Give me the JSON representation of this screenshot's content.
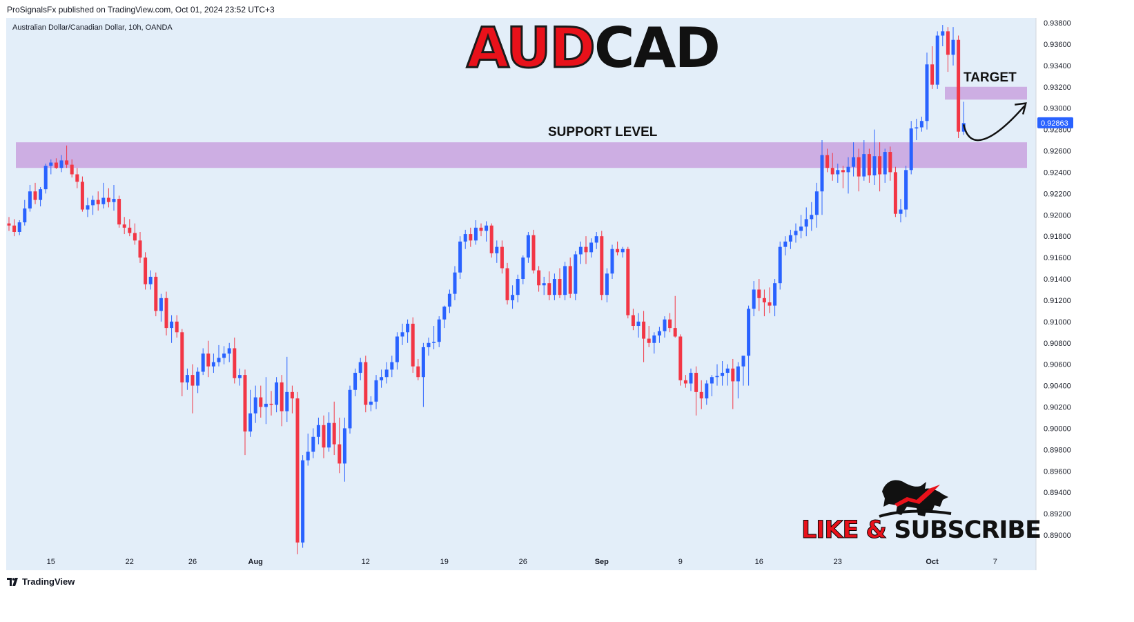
{
  "header": {
    "attribution": "ProSignalsFx published on TradingView.com, Oct 01, 2024 23:52 UTC+3"
  },
  "chart_data": {
    "type": "candlestick",
    "symbol": "Australian Dollar/Canadian Dollar, 10h, OANDA",
    "title_red": "AUD",
    "title_dark": "CAD",
    "ylim": [
      0.8875,
      0.9387
    ],
    "y_ticks": [
      "0.93800",
      "0.93600",
      "0.93400",
      "0.93200",
      "0.93000",
      "0.92800",
      "0.92600",
      "0.92400",
      "0.92200",
      "0.92000",
      "0.91800",
      "0.91600",
      "0.91400",
      "0.91200",
      "0.91000",
      "0.90800",
      "0.90600",
      "0.90400",
      "0.90200",
      "0.90000",
      "0.89800",
      "0.89600",
      "0.89400",
      "0.89200",
      "0.89000"
    ],
    "last_price": "0.92863",
    "x_labels": [
      {
        "label": "15",
        "bold": false,
        "index": 8
      },
      {
        "label": "22",
        "bold": false,
        "index": 23
      },
      {
        "label": "26",
        "bold": false,
        "index": 35
      },
      {
        "label": "Aug",
        "bold": true,
        "index": 47
      },
      {
        "label": "12",
        "bold": false,
        "index": 68
      },
      {
        "label": "19",
        "bold": false,
        "index": 83
      },
      {
        "label": "26",
        "bold": false,
        "index": 98
      },
      {
        "label": "Sep",
        "bold": true,
        "index": 113
      },
      {
        "label": "9",
        "bold": false,
        "index": 128
      },
      {
        "label": "16",
        "bold": false,
        "index": 143
      },
      {
        "label": "23",
        "bold": false,
        "index": 158
      },
      {
        "label": "Oct",
        "bold": true,
        "index": 176
      },
      {
        "label": "7",
        "bold": false,
        "index": 188
      }
    ],
    "support_zone": {
      "low": 0.9244,
      "high": 0.9268,
      "label": "SUPPORT LEVEL"
    },
    "target_zone": {
      "low": 0.9308,
      "high": 0.932,
      "label": "TARGET"
    },
    "candles": [
      [
        0.9192,
        0.9198,
        0.9185,
        0.919
      ],
      [
        0.919,
        0.9196,
        0.918,
        0.9184
      ],
      [
        0.9184,
        0.9195,
        0.9181,
        0.9193
      ],
      [
        0.9193,
        0.9214,
        0.919,
        0.9206
      ],
      [
        0.9206,
        0.9228,
        0.9203,
        0.9222
      ],
      [
        0.9222,
        0.923,
        0.921,
        0.9214
      ],
      [
        0.9214,
        0.9226,
        0.9208,
        0.9224
      ],
      [
        0.9224,
        0.9248,
        0.922,
        0.9246
      ],
      [
        0.9246,
        0.9252,
        0.9238,
        0.9249
      ],
      [
        0.9249,
        0.9253,
        0.9243,
        0.9244
      ],
      [
        0.9244,
        0.9256,
        0.924,
        0.9251
      ],
      [
        0.9251,
        0.9265,
        0.9244,
        0.9247
      ],
      [
        0.9247,
        0.9252,
        0.9235,
        0.9238
      ],
      [
        0.9238,
        0.9244,
        0.9225,
        0.9231
      ],
      [
        0.9231,
        0.9236,
        0.9203,
        0.9205
      ],
      [
        0.9205,
        0.9216,
        0.9198,
        0.9209
      ],
      [
        0.9209,
        0.9218,
        0.92,
        0.9214
      ],
      [
        0.9214,
        0.9222,
        0.9204,
        0.921
      ],
      [
        0.921,
        0.923,
        0.9206,
        0.9216
      ],
      [
        0.9216,
        0.9225,
        0.9207,
        0.9212
      ],
      [
        0.9212,
        0.9228,
        0.9204,
        0.9215
      ],
      [
        0.9215,
        0.9218,
        0.9188,
        0.9191
      ],
      [
        0.9191,
        0.9198,
        0.9182,
        0.9188
      ],
      [
        0.9188,
        0.9196,
        0.918,
        0.9183
      ],
      [
        0.9183,
        0.9192,
        0.9172,
        0.9176
      ],
      [
        0.9176,
        0.9184,
        0.9155,
        0.916
      ],
      [
        0.916,
        0.9165,
        0.913,
        0.9135
      ],
      [
        0.9135,
        0.9148,
        0.913,
        0.9142
      ],
      [
        0.9142,
        0.9146,
        0.9105,
        0.911
      ],
      [
        0.911,
        0.9126,
        0.91,
        0.9122
      ],
      [
        0.9122,
        0.9128,
        0.9087,
        0.9094
      ],
      [
        0.9094,
        0.9106,
        0.908,
        0.91
      ],
      [
        0.91,
        0.9106,
        0.9085,
        0.909
      ],
      [
        0.909,
        0.9093,
        0.903,
        0.9043
      ],
      [
        0.9043,
        0.9056,
        0.9036,
        0.905
      ],
      [
        0.905,
        0.906,
        0.9014,
        0.904
      ],
      [
        0.904,
        0.9057,
        0.9033,
        0.9053
      ],
      [
        0.9053,
        0.9075,
        0.905,
        0.907
      ],
      [
        0.907,
        0.9082,
        0.9048,
        0.9058
      ],
      [
        0.9058,
        0.907,
        0.9052,
        0.9062
      ],
      [
        0.9062,
        0.9078,
        0.9058,
        0.9066
      ],
      [
        0.9066,
        0.9077,
        0.906,
        0.907
      ],
      [
        0.907,
        0.908,
        0.9062,
        0.9075
      ],
      [
        0.9075,
        0.9085,
        0.9042,
        0.9047
      ],
      [
        0.9047,
        0.9056,
        0.904,
        0.905
      ],
      [
        0.905,
        0.9055,
        0.8975,
        0.8997
      ],
      [
        0.8997,
        0.9036,
        0.8992,
        0.9014
      ],
      [
        0.9014,
        0.904,
        0.9005,
        0.9029
      ],
      [
        0.9029,
        0.904,
        0.901,
        0.902
      ],
      [
        0.902,
        0.9048,
        0.9004,
        0.9023
      ],
      [
        0.9023,
        0.9035,
        0.9012,
        0.9022
      ],
      [
        0.9022,
        0.9048,
        0.9015,
        0.9043
      ],
      [
        0.9043,
        0.905,
        0.9002,
        0.9016
      ],
      [
        0.9016,
        0.9067,
        0.9006,
        0.9034
      ],
      [
        0.9034,
        0.904,
        0.9014,
        0.9028
      ],
      [
        0.9028,
        0.9034,
        0.8882,
        0.8893
      ],
      [
        0.8893,
        0.8975,
        0.8888,
        0.897
      ],
      [
        0.897,
        0.8995,
        0.8965,
        0.8978
      ],
      [
        0.8978,
        0.9,
        0.8972,
        0.8992
      ],
      [
        0.8992,
        0.901,
        0.8985,
        0.9003
      ],
      [
        0.9003,
        0.9012,
        0.8972,
        0.8982
      ],
      [
        0.8982,
        0.9015,
        0.8978,
        0.9005
      ],
      [
        0.9005,
        0.9025,
        0.8975,
        0.8985
      ],
      [
        0.8985,
        0.901,
        0.8958,
        0.8967
      ],
      [
        0.8967,
        0.901,
        0.895,
        0.9
      ],
      [
        0.9,
        0.904,
        0.8995,
        0.9036
      ],
      [
        0.9036,
        0.9056,
        0.903,
        0.9052
      ],
      [
        0.9052,
        0.9066,
        0.9045,
        0.9062
      ],
      [
        0.9062,
        0.9068,
        0.9015,
        0.9022
      ],
      [
        0.9022,
        0.903,
        0.9016,
        0.9025
      ],
      [
        0.9025,
        0.905,
        0.9018,
        0.9045
      ],
      [
        0.9045,
        0.9055,
        0.9038,
        0.9048
      ],
      [
        0.9048,
        0.9062,
        0.9042,
        0.9055
      ],
      [
        0.9055,
        0.9068,
        0.9048,
        0.9062
      ],
      [
        0.9062,
        0.909,
        0.9055,
        0.9086
      ],
      [
        0.9086,
        0.9098,
        0.9078,
        0.909
      ],
      [
        0.909,
        0.9102,
        0.908,
        0.9098
      ],
      [
        0.9098,
        0.9104,
        0.9052,
        0.9058
      ],
      [
        0.9058,
        0.9065,
        0.9045,
        0.9048
      ],
      [
        0.9048,
        0.908,
        0.902,
        0.9076
      ],
      [
        0.9076,
        0.9085,
        0.9068,
        0.908
      ],
      [
        0.908,
        0.9096,
        0.9074,
        0.9081
      ],
      [
        0.9081,
        0.9105,
        0.9076,
        0.9102
      ],
      [
        0.9102,
        0.9115,
        0.9094,
        0.9114
      ],
      [
        0.9114,
        0.913,
        0.9108,
        0.9126
      ],
      [
        0.9126,
        0.9152,
        0.912,
        0.9146
      ],
      [
        0.9146,
        0.918,
        0.914,
        0.9175
      ],
      [
        0.9175,
        0.9186,
        0.9168,
        0.9182
      ],
      [
        0.9182,
        0.9188,
        0.917,
        0.9176
      ],
      [
        0.9176,
        0.9195,
        0.9172,
        0.9188
      ],
      [
        0.9188,
        0.9192,
        0.918,
        0.9185
      ],
      [
        0.9185,
        0.9194,
        0.9175,
        0.919
      ],
      [
        0.919,
        0.9192,
        0.916,
        0.9164
      ],
      [
        0.9164,
        0.9176,
        0.9155,
        0.917
      ],
      [
        0.917,
        0.9176,
        0.9145,
        0.915
      ],
      [
        0.915,
        0.9155,
        0.9116,
        0.912
      ],
      [
        0.912,
        0.9134,
        0.9112,
        0.9125
      ],
      [
        0.9125,
        0.9144,
        0.9118,
        0.914
      ],
      [
        0.914,
        0.9162,
        0.9135,
        0.916
      ],
      [
        0.916,
        0.9184,
        0.9155,
        0.9181
      ],
      [
        0.9181,
        0.9186,
        0.9145,
        0.9148
      ],
      [
        0.9148,
        0.9152,
        0.9128,
        0.9134
      ],
      [
        0.9134,
        0.9142,
        0.9125,
        0.9136
      ],
      [
        0.9136,
        0.9147,
        0.912,
        0.9125
      ],
      [
        0.9125,
        0.9145,
        0.912,
        0.914
      ],
      [
        0.914,
        0.915,
        0.9122,
        0.9125
      ],
      [
        0.9125,
        0.9156,
        0.912,
        0.9152
      ],
      [
        0.9152,
        0.916,
        0.9122,
        0.9126
      ],
      [
        0.9126,
        0.9166,
        0.912,
        0.9163
      ],
      [
        0.9163,
        0.9175,
        0.9154,
        0.917
      ],
      [
        0.917,
        0.918,
        0.9154,
        0.9165
      ],
      [
        0.9165,
        0.9178,
        0.916,
        0.9174
      ],
      [
        0.9174,
        0.9184,
        0.9168,
        0.918
      ],
      [
        0.918,
        0.9185,
        0.912,
        0.9125
      ],
      [
        0.9125,
        0.915,
        0.9118,
        0.9145
      ],
      [
        0.9145,
        0.9172,
        0.914,
        0.9168
      ],
      [
        0.9168,
        0.9175,
        0.9162,
        0.9165
      ],
      [
        0.9165,
        0.917,
        0.916,
        0.9168
      ],
      [
        0.9168,
        0.917,
        0.9103,
        0.9106
      ],
      [
        0.9106,
        0.9112,
        0.9092,
        0.9096
      ],
      [
        0.9096,
        0.9108,
        0.9085,
        0.91
      ],
      [
        0.91,
        0.911,
        0.9062,
        0.9084
      ],
      [
        0.9084,
        0.9096,
        0.9076,
        0.908
      ],
      [
        0.908,
        0.909,
        0.907,
        0.9087
      ],
      [
        0.9087,
        0.9095,
        0.908,
        0.9091
      ],
      [
        0.9091,
        0.9105,
        0.9085,
        0.9102
      ],
      [
        0.9102,
        0.9108,
        0.909,
        0.9094
      ],
      [
        0.9094,
        0.9124,
        0.9085,
        0.9086
      ],
      [
        0.9086,
        0.9088,
        0.904,
        0.9045
      ],
      [
        0.9045,
        0.905,
        0.9038,
        0.9042
      ],
      [
        0.9042,
        0.9056,
        0.9035,
        0.9052
      ],
      [
        0.9052,
        0.9058,
        0.9012,
        0.9034
      ],
      [
        0.9034,
        0.9045,
        0.9018,
        0.9028
      ],
      [
        0.9028,
        0.9045,
        0.9022,
        0.9042
      ],
      [
        0.9042,
        0.905,
        0.903,
        0.9048
      ],
      [
        0.9048,
        0.906,
        0.904,
        0.9049
      ],
      [
        0.9049,
        0.9063,
        0.904,
        0.9052
      ],
      [
        0.9052,
        0.906,
        0.904,
        0.9056
      ],
      [
        0.9056,
        0.9065,
        0.9018,
        0.9044
      ],
      [
        0.9044,
        0.9062,
        0.9028,
        0.9058
      ],
      [
        0.9058,
        0.9065,
        0.904,
        0.9068
      ],
      [
        0.9068,
        0.9115,
        0.904,
        0.9112
      ],
      [
        0.9112,
        0.9138,
        0.9105,
        0.913
      ],
      [
        0.913,
        0.914,
        0.911,
        0.9122
      ],
      [
        0.9122,
        0.913,
        0.9105,
        0.9118
      ],
      [
        0.9118,
        0.9132,
        0.9108,
        0.9115
      ],
      [
        0.9115,
        0.914,
        0.9105,
        0.9136
      ],
      [
        0.9136,
        0.9175,
        0.913,
        0.917
      ],
      [
        0.917,
        0.918,
        0.9162,
        0.9175
      ],
      [
        0.9175,
        0.9186,
        0.9168,
        0.9181
      ],
      [
        0.9181,
        0.9192,
        0.9174,
        0.9185
      ],
      [
        0.9185,
        0.92,
        0.9178,
        0.9189
      ],
      [
        0.9189,
        0.9207,
        0.918,
        0.9196
      ],
      [
        0.9196,
        0.9212,
        0.9185,
        0.92
      ],
      [
        0.92,
        0.923,
        0.9188,
        0.9222
      ],
      [
        0.9222,
        0.927,
        0.92,
        0.9256
      ],
      [
        0.9256,
        0.9262,
        0.924,
        0.9244
      ],
      [
        0.9244,
        0.9258,
        0.9232,
        0.9238
      ],
      [
        0.9238,
        0.9248,
        0.923,
        0.9242
      ],
      [
        0.9242,
        0.9246,
        0.9225,
        0.924
      ],
      [
        0.924,
        0.9254,
        0.922,
        0.9245
      ],
      [
        0.9245,
        0.9268,
        0.9236,
        0.9254
      ],
      [
        0.9254,
        0.9262,
        0.9222,
        0.9236
      ],
      [
        0.9236,
        0.927,
        0.9232,
        0.9257
      ],
      [
        0.9257,
        0.9262,
        0.923,
        0.9237
      ],
      [
        0.9237,
        0.928,
        0.9228,
        0.9255
      ],
      [
        0.9255,
        0.9268,
        0.9222,
        0.9238
      ],
      [
        0.9238,
        0.9262,
        0.923,
        0.9259
      ],
      [
        0.9259,
        0.9264,
        0.9232,
        0.924
      ],
      [
        0.924,
        0.9245,
        0.9198,
        0.9201
      ],
      [
        0.9201,
        0.9215,
        0.9193,
        0.9205
      ],
      [
        0.9205,
        0.9246,
        0.9198,
        0.9242
      ],
      [
        0.9242,
        0.9288,
        0.9238,
        0.9281
      ],
      [
        0.9281,
        0.929,
        0.927,
        0.9282
      ],
      [
        0.9282,
        0.9292,
        0.9278,
        0.9288
      ],
      [
        0.9288,
        0.9352,
        0.928,
        0.9341
      ],
      [
        0.9341,
        0.9358,
        0.9318,
        0.9322
      ],
      [
        0.9322,
        0.9372,
        0.9318,
        0.9368
      ],
      [
        0.9368,
        0.9378,
        0.9358,
        0.9372
      ],
      [
        0.9372,
        0.9376,
        0.9334,
        0.935
      ],
      [
        0.935,
        0.9376,
        0.934,
        0.9364
      ],
      [
        0.9364,
        0.9368,
        0.9272,
        0.9278
      ],
      [
        0.9278,
        0.9306,
        0.9275,
        0.9286
      ]
    ]
  },
  "annotations": {
    "support_label": "SUPPORT LEVEL",
    "target_label": "TARGET"
  },
  "promo": {
    "like_text": "LIKE &",
    "subscribe_text": "SUBSCRIBE"
  },
  "footer": {
    "brand": "TradingView"
  },
  "colors": {
    "background": "#e3eef9",
    "up_candle": "#2962ff",
    "down_candle": "#f23645",
    "zone": "#cdaee3",
    "price_tag": "#2962ff",
    "title_red": "#e8111a"
  }
}
